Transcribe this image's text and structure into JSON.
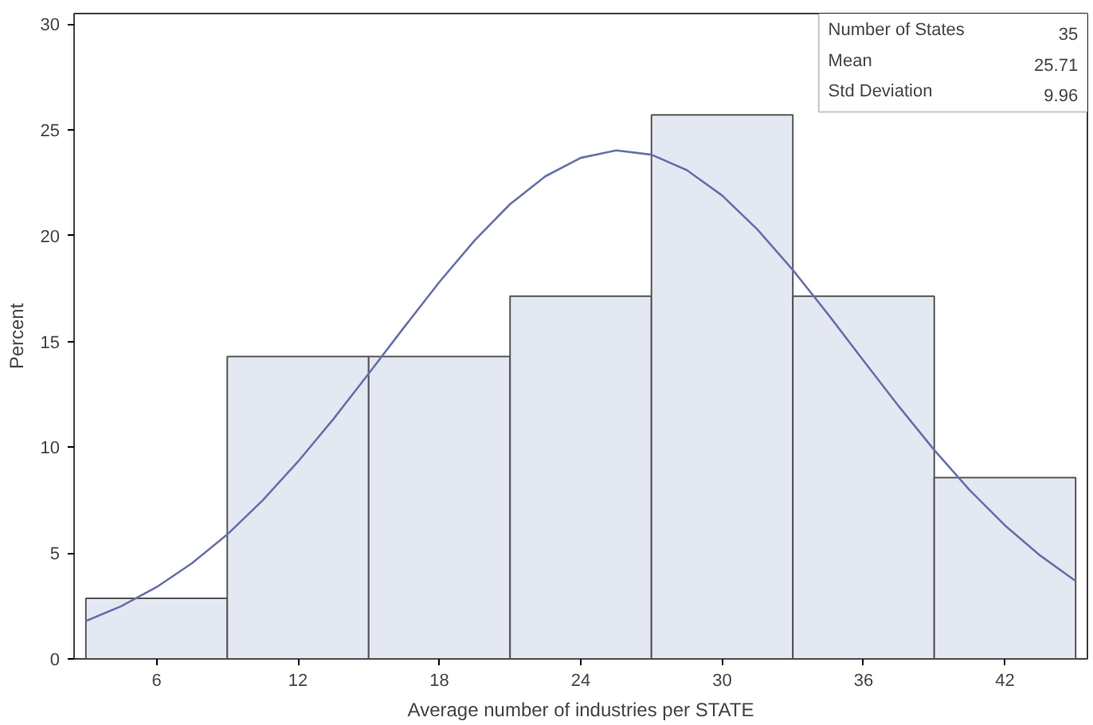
{
  "chart_data": {
    "type": "histogram",
    "xlabel": "Average number of industries per STATE",
    "ylabel": "Percent",
    "xlim": [
      2.5,
      45.5
    ],
    "ylim": [
      0,
      30.5
    ],
    "xticks": [
      6,
      12,
      18,
      24,
      30,
      36,
      42
    ],
    "yticks": [
      0,
      5,
      10,
      15,
      20,
      25,
      30
    ],
    "grid": false,
    "annotations": [
      "Number of States",
      "35",
      "Mean",
      "25.71",
      "Std Deviation",
      "9.96"
    ],
    "series": [
      {
        "color": "#e4e8f2",
        "bins": [
          3,
          9,
          15,
          21,
          27,
          33,
          39,
          45
        ],
        "values": [
          2.86,
          14.29,
          14.29,
          17.14,
          25.71,
          17.14,
          8.57
        ]
      },
      {
        "type": "line",
        "color": "#6670a8",
        "x": [
          3,
          4.5,
          6,
          7.5,
          9,
          10.5,
          12,
          13.5,
          15,
          16.5,
          18,
          19.5,
          21,
          22.5,
          24,
          25.5,
          27,
          28.5,
          30,
          31.5,
          33,
          34.5,
          36,
          37.5,
          39,
          40.5,
          42,
          43.5,
          45
        ],
        "values": [
          1.79,
          2.49,
          3.39,
          4.52,
          5.88,
          7.49,
          9.32,
          11.33,
          13.48,
          15.67,
          17.81,
          19.78,
          21.49,
          22.81,
          23.68,
          24.03,
          23.83,
          23.1,
          21.9,
          20.29,
          18.38,
          16.28,
          14.09,
          11.93,
          9.87,
          7.98,
          6.31,
          4.88,
          3.68
        ]
      }
    ]
  }
}
